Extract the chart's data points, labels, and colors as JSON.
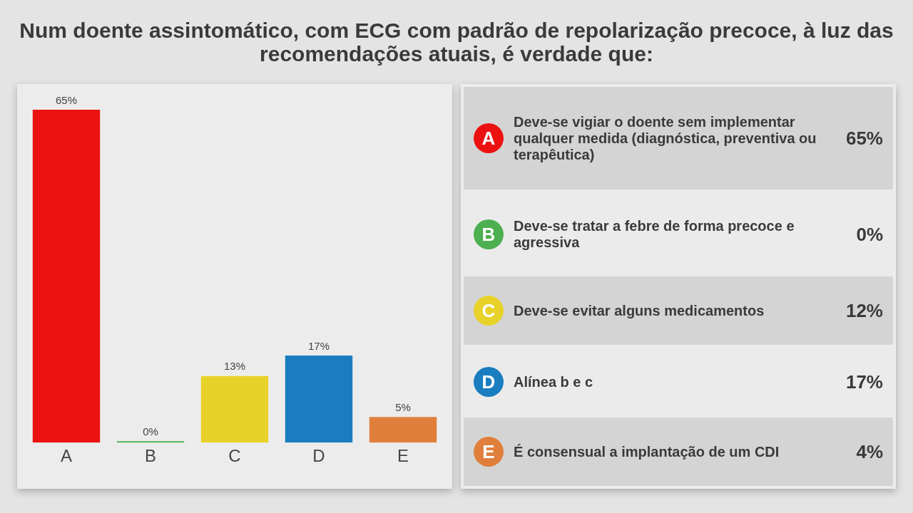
{
  "chart_data": [
    {
      "type": "bar",
      "title": "Num doente assintomático, com ECG com padrão de repolarização precoce, à luz das recomendações atuais, é verdade que:",
      "categories": [
        "A",
        "B",
        "C",
        "D",
        "E"
      ],
      "values": [
        65,
        0,
        13,
        17,
        5
      ],
      "colors": [
        "#ec1111",
        "#4caf50",
        "#e8d22a",
        "#1a7dc0",
        "#e07f3c"
      ],
      "value_labels": [
        "65%",
        "0%",
        "13%",
        "17%",
        "5%"
      ],
      "grid": false,
      "legend": false,
      "tick_labels": "x"
    },
    {
      "type": "other",
      "categories": [
        "A",
        "B",
        "C",
        "D",
        "E"
      ],
      "annotations": [
        "Deve-se vigiar o doente sem implementar qualquer medida (diagnóstica, preventiva ou terapêutica)",
        "Deve-se tratar a febre de forma precoce e agressiva",
        "Deve-se evitar alguns medicamentos",
        "Alínea b e c",
        "É consensual a implantação de um CDI"
      ],
      "value_labels": [
        "65%",
        "0%",
        "12%",
        "17%",
        "4%"
      ],
      "colors": [
        "#ec1111",
        "#4caf50",
        "#e8d22a",
        "#1a7dc0",
        "#e07f3c"
      ]
    }
  ]
}
